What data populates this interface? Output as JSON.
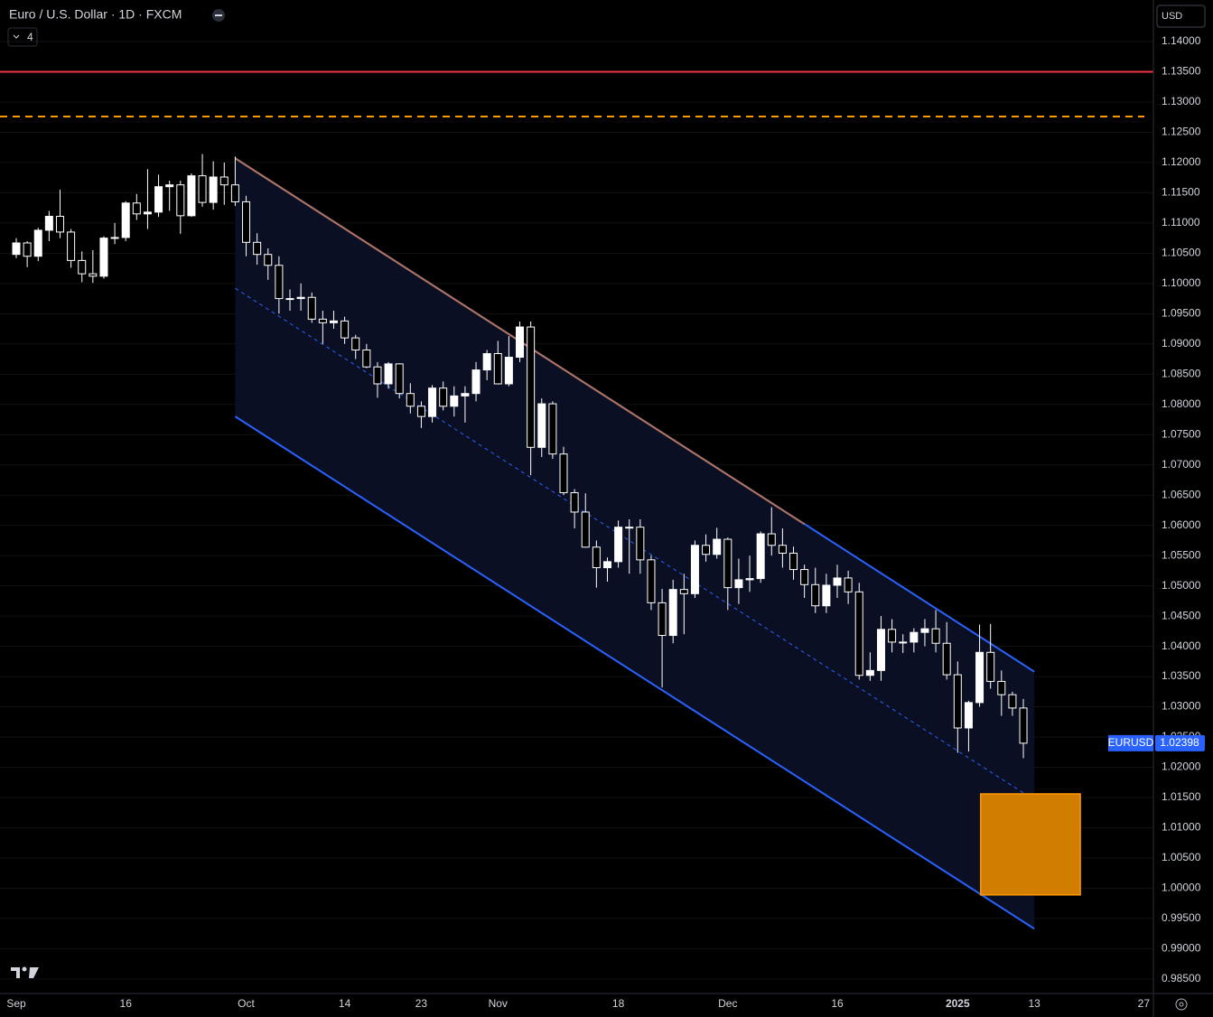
{
  "chart_data": {
    "type": "candlestick",
    "title": "Euro / U.S. Dollar · 1D · FXCM",
    "indicator_count": "4",
    "currency": "USD",
    "symbol": "EURUSD",
    "categories": [
      "Sep",
      null,
      null,
      null,
      null,
      null,
      null,
      null,
      null,
      null,
      "16",
      null,
      null,
      null,
      null,
      null,
      null,
      null,
      null,
      null,
      null,
      "Oct",
      null,
      null,
      null,
      null,
      null,
      null,
      null,
      null,
      "14",
      null,
      null,
      null,
      null,
      null,
      null,
      "23",
      null,
      null,
      null,
      null,
      null,
      null,
      "Nov",
      null,
      null,
      null,
      null,
      null,
      null,
      null,
      null,
      null,
      null,
      "18",
      null,
      null,
      null,
      null,
      null,
      null,
      null,
      null,
      null,
      "Dec",
      null,
      null,
      null,
      null,
      null,
      null,
      null,
      null,
      null,
      "16",
      null,
      null,
      null,
      null,
      null,
      null,
      null,
      null,
      null,
      null,
      "2025",
      null,
      null,
      null,
      null,
      null,
      null,
      "13",
      null,
      null,
      null,
      null,
      null,
      null,
      null,
      null,
      null,
      "27"
    ],
    "open": [
      1.1048,
      1.1067,
      1.1045,
      1.1088,
      1.1111,
      1.1085,
      1.1038,
      1.1016,
      1.1012,
      1.1075,
      1.1076,
      1.1133,
      1.1115,
      1.1118,
      1.116,
      1.1163,
      1.1112,
      1.1178,
      1.1134,
      1.1176,
      1.1163,
      1.1135,
      1.1068,
      1.1048,
      1.103,
      1.0975,
      1.0975,
      1.0977,
      1.0941,
      1.0935,
      1.0938,
      1.091,
      1.089,
      1.0862,
      1.0834,
      1.0867,
      1.0818,
      1.0797,
      1.078,
      1.0827,
      1.0797,
      1.0814,
      1.0818,
      1.0857,
      1.0884,
      1.0834,
      1.0878,
      1.0928,
      1.0729,
      1.0801,
      1.0718,
      1.0654,
      1.0622,
      1.0564,
      1.053,
      1.054,
      1.0597,
      1.0597,
      1.0543,
      1.0472,
      1.0418,
      1.0494,
      1.0487,
      1.0567,
      1.0552,
      1.0577,
      1.0497,
      1.051,
      1.0512,
      1.0586,
      1.0567,
      1.0554,
      1.0527,
      1.0502,
      1.0467,
      1.0501,
      1.0513,
      1.049,
      1.0352,
      1.036,
      1.0428,
      1.0407,
      1.0407,
      1.0423,
      1.0429,
      1.0405,
      1.0353,
      1.0265,
      1.0307,
      1.039,
      1.0342,
      1.032,
      1.0298,
      null,
      null,
      null,
      null,
      null,
      null,
      null,
      null,
      null,
      null,
      null
    ],
    "high": [
      1.1075,
      1.107,
      1.1092,
      1.112,
      1.1155,
      1.109,
      1.1053,
      1.1055,
      1.1078,
      1.11,
      1.1136,
      1.1148,
      1.1189,
      1.118,
      1.117,
      1.117,
      1.1182,
      1.1214,
      1.1202,
      1.12,
      1.121,
      1.1145,
      1.1083,
      1.1058,
      1.1045,
      1.099,
      1.1,
      1.0985,
      1.0955,
      1.0955,
      1.0945,
      1.0915,
      1.09,
      1.087,
      1.087,
      1.0868,
      1.0835,
      1.0805,
      1.0832,
      1.0838,
      1.083,
      1.083,
      1.087,
      1.089,
      1.0905,
      1.0913,
      1.0937,
      1.0937,
      1.081,
      1.0805,
      1.073,
      1.066,
      1.0653,
      1.0575,
      1.0547,
      1.0608,
      1.061,
      1.061,
      1.055,
      1.0495,
      1.051,
      1.052,
      1.0575,
      1.0585,
      1.0596,
      1.058,
      1.0545,
      1.055,
      1.059,
      1.063,
      1.0595,
      1.0565,
      1.0535,
      1.053,
      1.052,
      1.0535,
      1.0525,
      1.0505,
      1.039,
      1.045,
      1.0445,
      1.042,
      1.043,
      1.0445,
      1.046,
      1.044,
      1.0375,
      1.031,
      1.0436,
      1.0437,
      1.036,
      1.0325,
      1.0313,
      null,
      null,
      null,
      null,
      null,
      null,
      null,
      null,
      null,
      null,
      null
    ],
    "low": [
      1.1042,
      1.1027,
      1.1037,
      1.107,
      1.1075,
      1.1026,
      1.1002,
      1.1001,
      1.1008,
      1.1065,
      1.107,
      1.1105,
      1.109,
      1.111,
      1.112,
      1.1082,
      1.111,
      1.1127,
      1.1122,
      1.113,
      1.1128,
      1.1045,
      1.1031,
      1.1006,
      1.095,
      1.0955,
      1.0955,
      1.0935,
      1.09,
      1.0925,
      1.09,
      1.0875,
      1.086,
      1.0811,
      1.0826,
      1.081,
      1.0785,
      1.0761,
      1.077,
      1.079,
      1.078,
      1.077,
      1.0805,
      1.084,
      1.0833,
      1.083,
      1.087,
      1.0683,
      1.0713,
      1.071,
      1.065,
      1.0595,
      1.0563,
      1.0497,
      1.0507,
      1.053,
      1.052,
      1.052,
      1.046,
      1.0332,
      1.0405,
      1.042,
      1.048,
      1.054,
      1.0545,
      1.046,
      1.047,
      1.049,
      1.0505,
      1.055,
      1.053,
      1.051,
      1.048,
      1.0455,
      1.0455,
      1.048,
      1.047,
      1.0345,
      1.0343,
      1.0343,
      1.039,
      1.0389,
      1.039,
      1.04,
      1.039,
      1.0345,
      1.0224,
      1.0226,
      1.03,
      1.033,
      1.0285,
      1.0285,
      1.0215,
      null,
      null,
      null,
      null,
      null,
      null,
      null,
      null,
      null,
      null,
      null
    ],
    "close": [
      1.1067,
      1.1045,
      1.1088,
      1.1111,
      1.1085,
      1.1038,
      1.1016,
      1.1012,
      1.1075,
      1.1076,
      1.1133,
      1.1115,
      1.1118,
      1.116,
      1.1163,
      1.1112,
      1.1178,
      1.1134,
      1.1176,
      1.1163,
      1.1135,
      1.1068,
      1.1048,
      1.103,
      1.0975,
      1.0975,
      1.0977,
      1.0941,
      1.0935,
      1.0938,
      1.091,
      1.089,
      1.0862,
      1.0834,
      1.0867,
      1.0818,
      1.0797,
      1.078,
      1.0827,
      1.0797,
      1.0814,
      1.0818,
      1.0857,
      1.0884,
      1.0834,
      1.0878,
      1.0928,
      1.0729,
      1.0801,
      1.0718,
      1.0654,
      1.0622,
      1.0564,
      1.053,
      1.054,
      1.0597,
      1.0597,
      1.0543,
      1.0472,
      1.0418,
      1.0494,
      1.0487,
      1.0567,
      1.0552,
      1.0577,
      1.0497,
      1.051,
      1.0512,
      1.0586,
      1.0567,
      1.0554,
      1.0527,
      1.0502,
      1.0467,
      1.0501,
      1.0513,
      1.049,
      1.0352,
      1.036,
      1.0428,
      1.0407,
      1.0407,
      1.0423,
      1.0429,
      1.0405,
      1.0353,
      1.0265,
      1.0307,
      1.039,
      1.0342,
      1.032,
      1.0298,
      1.02398,
      null,
      null,
      null,
      null,
      null,
      null,
      null,
      null,
      null,
      null,
      null
    ],
    "up_color": "#ffffff",
    "down_color": "#000000",
    "wick_color": "#ffffff",
    "ylim": [
      0.98259,
      1.14687
    ],
    "yticks": [
      {
        "value": 1.14,
        "label": "1.14000"
      },
      {
        "value": 1.135,
        "label": "1.13500"
      },
      {
        "value": 1.13,
        "label": "1.13000"
      },
      {
        "value": 1.125,
        "label": "1.12500"
      },
      {
        "value": 1.12,
        "label": "1.12000"
      },
      {
        "value": 1.115,
        "label": "1.11500"
      },
      {
        "value": 1.11,
        "label": "1.11000"
      },
      {
        "value": 1.105,
        "label": "1.10500"
      },
      {
        "value": 1.1,
        "label": "1.10000"
      },
      {
        "value": 1.095,
        "label": "1.09500"
      },
      {
        "value": 1.09,
        "label": "1.09000"
      },
      {
        "value": 1.085,
        "label": "1.08500"
      },
      {
        "value": 1.08,
        "label": "1.08000"
      },
      {
        "value": 1.075,
        "label": "1.07500"
      },
      {
        "value": 1.07,
        "label": "1.07000"
      },
      {
        "value": 1.065,
        "label": "1.06500"
      },
      {
        "value": 1.06,
        "label": "1.06000"
      },
      {
        "value": 1.055,
        "label": "1.05500"
      },
      {
        "value": 1.05,
        "label": "1.05000"
      },
      {
        "value": 1.045,
        "label": "1.04500"
      },
      {
        "value": 1.04,
        "label": "1.04000"
      },
      {
        "value": 1.035,
        "label": "1.03500"
      },
      {
        "value": 1.03,
        "label": "1.03000"
      },
      {
        "value": 1.025,
        "label": "1.02500"
      },
      {
        "value": 1.02,
        "label": "1.02000"
      },
      {
        "value": 1.015,
        "label": "1.01500"
      },
      {
        "value": 1.01,
        "label": "1.01000"
      },
      {
        "value": 1.005,
        "label": "1.00500"
      },
      {
        "value": 1.0,
        "label": "1.00000"
      },
      {
        "value": 0.995,
        "label": "0.99500"
      },
      {
        "value": 0.99,
        "label": "0.99000"
      },
      {
        "value": 0.985,
        "label": "0.98500"
      }
    ],
    "grid": true,
    "levels": [
      {
        "value": 1.135,
        "color": "#f23645",
        "style": "solid"
      },
      {
        "value": 1.1276,
        "color": "#ff9800",
        "style": "dashed"
      }
    ],
    "channel": {
      "x": [
        20,
        93
      ],
      "upper": [
        1.1207,
        1.0358
      ],
      "middle": [
        1.0992,
        1.0146
      ],
      "lower": [
        1.078,
        0.9933
      ],
      "color": "#2962ff",
      "fill": "#0a0f24"
    },
    "trendline": {
      "x": [
        20,
        72
      ],
      "y": [
        1.1207,
        1.0602
      ],
      "color": "#b5735b"
    },
    "zone": {
      "x": [
        88.1,
        97.2
      ],
      "y": [
        0.9989,
        1.0156
      ],
      "color": "#d17d00",
      "border": "#ff9800"
    }
  }
}
